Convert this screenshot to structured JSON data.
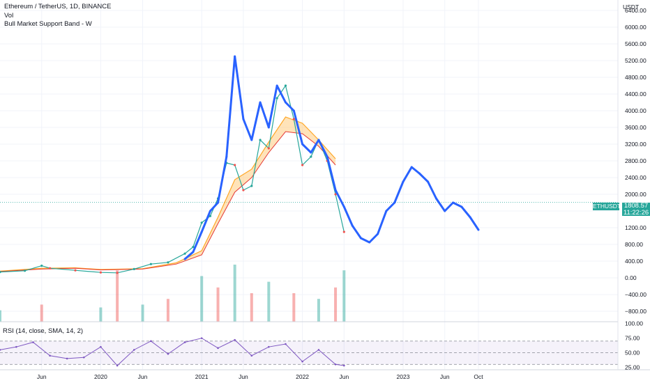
{
  "legend": {
    "symbol": "Ethereum / TetherUS, 1D, BINANCE",
    "volume": "Vol",
    "indicator": "Bull Market Support Band - W"
  },
  "rsi_legend": "RSI (14, close, SMA, 14, 2)",
  "price_axis_unit": "USDT",
  "last_price": {
    "symbol": "ETHUSDT",
    "value": "1808.57",
    "countdown": "11:22:26",
    "color": "#26a69a"
  },
  "colors": {
    "candle_up": "#26a69a",
    "candle_down": "#ef5350",
    "drawing": "#2962ff",
    "band_sma": "#e53935",
    "band_ema": "#ffa726",
    "band_fill": "#ffcc80",
    "rsi_line": "#7e57c2",
    "rsi_ma": "#fbc02d"
  },
  "chart_data": [
    {
      "type": "line",
      "title": "Ethereum / TetherUS, 1D, BINANCE",
      "price_axis": {
        "ticks": [
          -800,
          -400,
          0,
          400,
          800,
          1200,
          1600,
          2000,
          2400,
          2800,
          3200,
          3600,
          4000,
          4400,
          4800,
          5200,
          5600,
          6000,
          6400
        ],
        "tick_labels": [
          "−800.00",
          "−400.00",
          "0.00",
          "400.00",
          "800.00",
          "1200.00",
          "1600.00",
          "2000.00",
          "2400.00",
          "2800.00",
          "3200.00",
          "3600.00",
          "4000.00",
          "4400.00",
          "4800.00",
          "5200.00",
          "5600.00",
          "6000.00",
          "6400.00"
        ],
        "ylim": [
          -1050,
          6650
        ]
      },
      "time_axis": {
        "labels": [
          "Jun",
          "2020",
          "Jun",
          "2021",
          "Jun",
          "2022",
          "Jun",
          "2023",
          "Jun",
          "Oct"
        ],
        "label_dates": [
          "2019-06",
          "2020-01",
          "2020-06",
          "2021-01",
          "2021-06",
          "2022-01",
          "2022-06",
          "2023-01",
          "2023-06",
          "2023-10"
        ]
      },
      "price_series": {
        "name": "Ethereum / TetherUS",
        "x": [
          "2019-01",
          "2019-04",
          "2019-06",
          "2019-07",
          "2019-10",
          "2020-01",
          "2020-03",
          "2020-05",
          "2020-07",
          "2020-09",
          "2020-11",
          "2020-12",
          "2021-01",
          "2021-02",
          "2021-03",
          "2021-04",
          "2021-05",
          "2021-06",
          "2021-07",
          "2021-08",
          "2021-09",
          "2021-10",
          "2021-11",
          "2021-12",
          "2022-01",
          "2022-02",
          "2022-03",
          "2022-04",
          "2022-05",
          "2022-06"
        ],
        "close": [
          140,
          170,
          290,
          230,
          180,
          130,
          120,
          210,
          330,
          370,
          580,
          740,
          1320,
          1480,
          1900,
          2750,
          2700,
          2100,
          2200,
          3300,
          3100,
          4300,
          4600,
          3800,
          2700,
          2900,
          3300,
          2800,
          2000,
          1100
        ]
      },
      "drawing_series": {
        "x": [
          "2020-11",
          "2020-12",
          "2021-01",
          "2021-02",
          "2021-03",
          "2021-04",
          "2021-05",
          "2021-06",
          "2021-07",
          "2021-08",
          "2021-09",
          "2021-10",
          "2021-11",
          "2021-12",
          "2022-01",
          "2022-02",
          "2022-03",
          "2022-04",
          "2022-05",
          "2022-06",
          "2022-07",
          "2022-08",
          "2022-09",
          "2022-10",
          "2022-11",
          "2022-12",
          "2023-01",
          "2023-02",
          "2023-03",
          "2023-04",
          "2023-05",
          "2023-06",
          "2023-07",
          "2023-08",
          "2023-09",
          "2023-10"
        ],
        "values": [
          450,
          620,
          1100,
          1600,
          1800,
          2900,
          5300,
          3800,
          3300,
          4200,
          3600,
          4600,
          4200,
          4000,
          3200,
          3000,
          3300,
          2900,
          2100,
          1700,
          1250,
          950,
          850,
          1050,
          1600,
          1800,
          2300,
          2650,
          2500,
          2300,
          1900,
          1600,
          1800,
          1700,
          1450,
          1150
        ]
      },
      "bull_market_support_band": {
        "x": [
          "2019-01",
          "2019-06",
          "2019-10",
          "2020-01",
          "2020-06",
          "2020-10",
          "2021-01",
          "2021-03",
          "2021-05",
          "2021-07",
          "2021-09",
          "2021-11",
          "2022-01",
          "2022-03",
          "2022-05"
        ],
        "upper": [
          160,
          230,
          240,
          200,
          220,
          360,
          650,
          1450,
          2350,
          2600,
          3250,
          3850,
          3700,
          3300,
          2850
        ],
        "lower": [
          150,
          210,
          230,
          190,
          210,
          330,
          550,
          1300,
          2050,
          2400,
          3000,
          3500,
          3450,
          3150,
          2700
        ]
      },
      "volume": {
        "x": [
          "2019-01",
          "2019-06",
          "2020-01",
          "2020-03",
          "2020-06",
          "2020-09",
          "2021-01",
          "2021-03",
          "2021-05",
          "2021-07",
          "2021-09",
          "2021-12",
          "2022-03",
          "2022-05",
          "2022-06"
        ],
        "values": [
          0.2,
          0.3,
          0.25,
          0.9,
          0.3,
          0.4,
          0.8,
          0.6,
          1.0,
          0.5,
          0.7,
          0.5,
          0.4,
          0.6,
          0.9
        ]
      },
      "xlabel": "",
      "ylabel": ""
    },
    {
      "type": "line",
      "title": "RSI (14, close, SMA, 14, 2)",
      "yticks": [
        25,
        50,
        75,
        100
      ],
      "tick_labels": [
        "25.00",
        "50.00",
        "75.00",
        "100.00"
      ],
      "ylim": [
        22,
        102
      ],
      "band": [
        30,
        70
      ],
      "series": [
        {
          "name": "RSI",
          "x": [
            "2019-01",
            "2019-03",
            "2019-05",
            "2019-07",
            "2019-09",
            "2019-11",
            "2020-01",
            "2020-03",
            "2020-05",
            "2020-07",
            "2020-09",
            "2020-11",
            "2021-01",
            "2021-03",
            "2021-05",
            "2021-07",
            "2021-09",
            "2021-11",
            "2022-01",
            "2022-03",
            "2022-05",
            "2022-06"
          ],
          "values": [
            55,
            60,
            68,
            45,
            40,
            42,
            60,
            28,
            55,
            70,
            48,
            68,
            75,
            58,
            72,
            45,
            60,
            65,
            35,
            55,
            30,
            28
          ]
        }
      ]
    }
  ]
}
